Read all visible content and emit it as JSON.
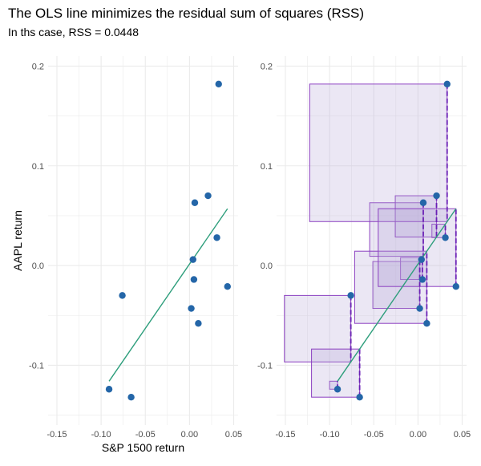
{
  "header": {
    "title": "The OLS line minimizes the residual sum of squares (RSS)",
    "subtitle": "In ths case, RSS = 0.0448"
  },
  "colors": {
    "point": "#2466a8",
    "line": "#2e9e7c",
    "square_stroke": "#8b3fc0",
    "square_fill": "#b7a8d6",
    "grid": "#ebebeb"
  },
  "chart_data": [
    {
      "type": "scatter",
      "panel": "left",
      "title": "",
      "xlabel": "S&P 1500 return",
      "ylabel": "AAPL return",
      "xlim": [
        -0.16,
        0.055
      ],
      "ylim": [
        -0.16,
        0.21
      ],
      "x_ticks": [
        -0.15,
        -0.1,
        -0.05,
        0.0,
        0.05
      ],
      "x_tick_labels": [
        "-0.15",
        "-0.10",
        "-0.05",
        "0.00",
        "0.05"
      ],
      "y_ticks": [
        -0.1,
        0.0,
        0.1,
        0.2
      ],
      "y_tick_labels": [
        "-0.1",
        "0.0",
        "0.1",
        "0.2"
      ],
      "grid": true,
      "points": [
        {
          "x": -0.091,
          "y": -0.124
        },
        {
          "x": -0.076,
          "y": -0.03
        },
        {
          "x": -0.066,
          "y": -0.132
        },
        {
          "x": 0.002,
          "y": -0.043
        },
        {
          "x": 0.004,
          "y": 0.006
        },
        {
          "x": 0.005,
          "y": -0.014
        },
        {
          "x": 0.006,
          "y": 0.063
        },
        {
          "x": 0.01,
          "y": -0.058
        },
        {
          "x": 0.021,
          "y": 0.07
        },
        {
          "x": 0.031,
          "y": 0.028
        },
        {
          "x": 0.033,
          "y": 0.182
        },
        {
          "x": 0.043,
          "y": -0.021
        }
      ],
      "fit_line": {
        "x0": -0.091,
        "y0": -0.116,
        "x1": 0.043,
        "y1": 0.057
      }
    },
    {
      "type": "scatter",
      "panel": "right",
      "title": "",
      "xlabel": "",
      "ylabel": "",
      "xlim": [
        -0.16,
        0.055
      ],
      "ylim": [
        -0.16,
        0.21
      ],
      "x_ticks": [
        -0.15,
        -0.1,
        -0.05,
        0.0,
        0.05
      ],
      "x_tick_labels": [
        "-0.15",
        "-0.10",
        "-0.05",
        "0.00",
        "0.05"
      ],
      "y_ticks": [
        -0.1,
        0.0,
        0.1,
        0.2
      ],
      "y_tick_labels": [
        "-0.1",
        "0.0",
        "0.1",
        "0.2"
      ],
      "grid": true,
      "annotation": "residual squares",
      "points": [
        {
          "x": -0.091,
          "y": -0.124
        },
        {
          "x": -0.076,
          "y": -0.03
        },
        {
          "x": -0.066,
          "y": -0.132
        },
        {
          "x": 0.002,
          "y": -0.043
        },
        {
          "x": 0.004,
          "y": 0.006
        },
        {
          "x": 0.005,
          "y": -0.014
        },
        {
          "x": 0.006,
          "y": 0.063
        },
        {
          "x": 0.01,
          "y": -0.058
        },
        {
          "x": 0.021,
          "y": 0.07
        },
        {
          "x": 0.031,
          "y": 0.028
        },
        {
          "x": 0.033,
          "y": 0.182
        },
        {
          "x": 0.043,
          "y": -0.021
        }
      ],
      "fit_line": {
        "x0": -0.091,
        "y0": -0.116,
        "x1": 0.043,
        "y1": 0.057
      }
    }
  ]
}
